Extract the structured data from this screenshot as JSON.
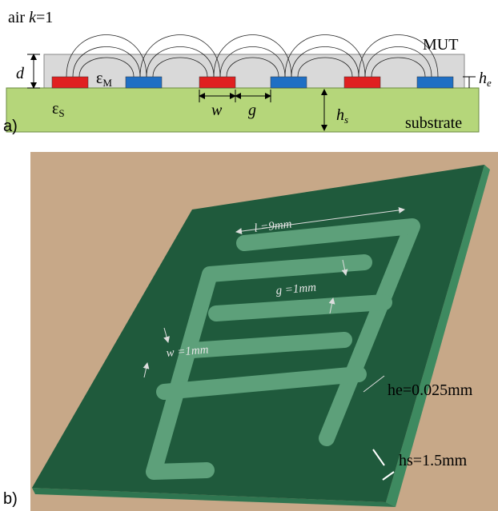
{
  "panel_a": {
    "label": "a)",
    "air": [
      "air ",
      "k",
      "=1"
    ],
    "mut": "MUT",
    "d": "d",
    "eps_m": [
      "ε",
      "M"
    ],
    "h_e": [
      "h",
      "e"
    ],
    "eps_s": [
      "ε",
      "S"
    ],
    "w": "w",
    "g": "g",
    "h_s": [
      "h",
      "s"
    ],
    "substrate": "substrate"
  },
  "panel_b": {
    "label": "b)",
    "length": "l =9mm",
    "gap": "g =1mm",
    "width": "w =1mm",
    "he": "he=0.025mm",
    "hs": "hs=1.5mm"
  }
}
